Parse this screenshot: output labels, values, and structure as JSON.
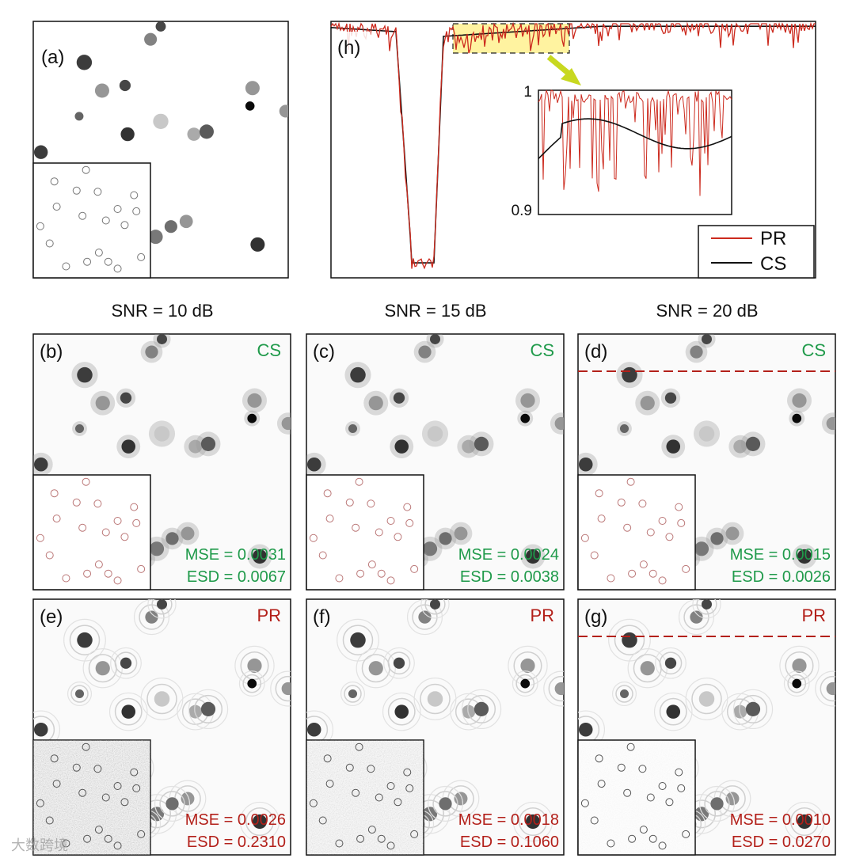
{
  "figure": {
    "panel_a": {
      "label": "(a)"
    },
    "panel_h": {
      "label": "(h)",
      "inset": {
        "ymax_label": "1",
        "ymin_label": "0.9"
      },
      "legend": [
        {
          "name": "PR",
          "color": "#cc2a1e"
        },
        {
          "name": "CS",
          "color": "#111111"
        }
      ]
    },
    "columns": [
      {
        "snr": "SNR = 10 dB"
      },
      {
        "snr": "SNR = 15 dB"
      },
      {
        "snr": "SNR = 20 dB"
      }
    ],
    "cs_row": [
      {
        "label": "(b)",
        "method": "CS",
        "mse": "MSE = 0.0031",
        "esd": "ESD = 0.0067"
      },
      {
        "label": "(c)",
        "method": "CS",
        "mse": "MSE = 0.0024",
        "esd": "ESD = 0.0038"
      },
      {
        "label": "(d)",
        "method": "CS",
        "mse": "MSE = 0.0015",
        "esd": "ESD = 0.0026"
      }
    ],
    "pr_row": [
      {
        "label": "(e)",
        "method": "PR",
        "mse": "MSE = 0.0026",
        "esd": "ESD = 0.2310"
      },
      {
        "label": "(f)",
        "method": "PR",
        "mse": "MSE = 0.0018",
        "esd": "ESD = 0.1060"
      },
      {
        "label": "(g)",
        "method": "PR",
        "mse": "MSE = 0.0010",
        "esd": "ESD = 0.0270"
      }
    ],
    "watermark": "大数跨境",
    "colors": {
      "cs_text": "#1f9a4a",
      "pr_text": "#b3201a",
      "highlight": "#fff3a0",
      "arrow": "#c8d820"
    }
  }
}
